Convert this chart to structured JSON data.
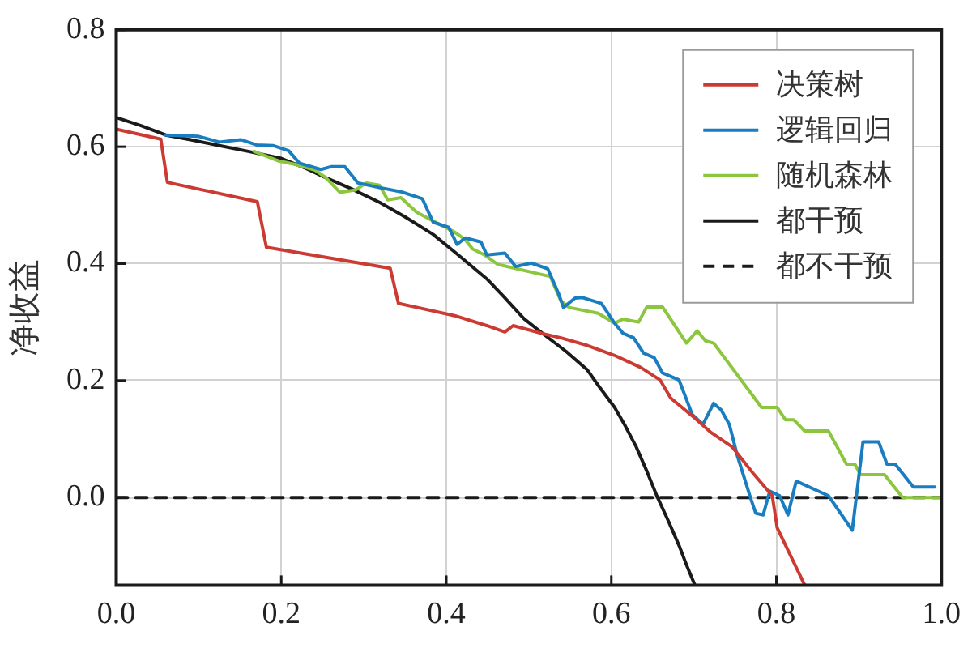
{
  "chart_data": {
    "type": "line",
    "ylabel": "净收益",
    "xlim": [
      0,
      1
    ],
    "xticks": [
      {
        "value": 0,
        "label": "0.0"
      },
      0.2,
      0.4,
      0.6,
      0.8,
      {
        "value": 1,
        "label": "1.0"
      }
    ],
    "ylim": [
      -0.15,
      0.8
    ],
    "yticks": [
      {
        "value": 0,
        "label": "0.0"
      },
      0.2,
      0.4,
      0.6,
      0.8
    ],
    "grid": true,
    "legend": "top right",
    "series": [
      {
        "name": "决策树",
        "color": "#cc3b33",
        "x": [
          0,
          0.054,
          0.062,
          0.171,
          0.182,
          0.332,
          0.342,
          0.41,
          0.449,
          0.471,
          0.481,
          0.52,
          0.539,
          0.571,
          0.604,
          0.636,
          0.659,
          0.672,
          0.701,
          0.72,
          0.746,
          0.772,
          0.795,
          0.801,
          0.834
        ],
        "values": [
          0.63,
          0.613,
          0.539,
          0.506,
          0.428,
          0.392,
          0.332,
          0.311,
          0.294,
          0.283,
          0.294,
          0.279,
          0.273,
          0.26,
          0.243,
          0.222,
          0.201,
          0.17,
          0.136,
          0.112,
          0.087,
          0.041,
          0.003,
          -0.052,
          -0.149
        ]
      },
      {
        "name": "逻辑回归",
        "color": "#1a7dc0",
        "x": [
          0.06,
          0.099,
          0.125,
          0.151,
          0.17,
          0.19,
          0.209,
          0.222,
          0.248,
          0.261,
          0.277,
          0.293,
          0.319,
          0.345,
          0.371,
          0.384,
          0.403,
          0.413,
          0.423,
          0.442,
          0.449,
          0.471,
          0.484,
          0.503,
          0.523,
          0.536,
          0.542,
          0.556,
          0.565,
          0.588,
          0.604,
          0.614,
          0.627,
          0.639,
          0.652,
          0.662,
          0.682,
          0.698,
          0.711,
          0.724,
          0.733,
          0.743,
          0.753,
          0.769,
          0.775,
          0.784,
          0.792,
          0.804,
          0.814,
          0.824,
          0.863,
          0.892,
          0.905,
          0.924,
          0.934,
          0.944,
          0.966,
          0.992
        ],
        "values": [
          0.62,
          0.618,
          0.608,
          0.612,
          0.603,
          0.602,
          0.593,
          0.572,
          0.561,
          0.566,
          0.566,
          0.538,
          0.53,
          0.523,
          0.511,
          0.471,
          0.462,
          0.433,
          0.444,
          0.437,
          0.415,
          0.418,
          0.395,
          0.401,
          0.391,
          0.349,
          0.325,
          0.341,
          0.342,
          0.332,
          0.298,
          0.281,
          0.273,
          0.247,
          0.239,
          0.213,
          0.201,
          0.142,
          0.125,
          0.161,
          0.15,
          0.125,
          0.07,
          -0.002,
          -0.027,
          -0.03,
          0.011,
          0.003,
          -0.03,
          0.028,
          0.003,
          -0.056,
          0.095,
          0.095,
          0.057,
          0.057,
          0.018,
          0.018
        ]
      },
      {
        "name": "随机森林",
        "color": "#8cc63e",
        "x": [
          0.167,
          0.196,
          0.216,
          0.241,
          0.254,
          0.271,
          0.29,
          0.303,
          0.319,
          0.329,
          0.345,
          0.364,
          0.384,
          0.41,
          0.423,
          0.432,
          0.445,
          0.462,
          0.526,
          0.539,
          0.549,
          0.584,
          0.604,
          0.614,
          0.633,
          0.643,
          0.662,
          0.691,
          0.704,
          0.714,
          0.724,
          0.782,
          0.801,
          0.811,
          0.821,
          0.834,
          0.863,
          0.885,
          0.895,
          0.902,
          0.931,
          0.953,
          1
        ],
        "values": [
          0.592,
          0.576,
          0.57,
          0.56,
          0.547,
          0.522,
          0.526,
          0.538,
          0.534,
          0.509,
          0.513,
          0.488,
          0.473,
          0.454,
          0.441,
          0.425,
          0.416,
          0.399,
          0.378,
          0.336,
          0.325,
          0.315,
          0.298,
          0.305,
          0.3,
          0.326,
          0.326,
          0.264,
          0.285,
          0.268,
          0.264,
          0.154,
          0.154,
          0.133,
          0.133,
          0.114,
          0.114,
          0.057,
          0.057,
          0.039,
          0.039,
          0,
          0
        ]
      },
      {
        "name": "都干预",
        "color": "#1a1a1a",
        "x": [
          0,
          0.03,
          0.06,
          0.09,
          0.125,
          0.16,
          0.2,
          0.23,
          0.254,
          0.285,
          0.319,
          0.35,
          0.384,
          0.41,
          0.449,
          0.47,
          0.494,
          0.52,
          0.545,
          0.571,
          0.585,
          0.604,
          0.617,
          0.63,
          0.643,
          0.656,
          0.669,
          0.682,
          0.691,
          0.701
        ],
        "values": [
          0.65,
          0.636,
          0.62,
          0.612,
          0.602,
          0.592,
          0.58,
          0.563,
          0.547,
          0.528,
          0.505,
          0.48,
          0.45,
          0.42,
          0.374,
          0.343,
          0.306,
          0.277,
          0.25,
          0.218,
          0.19,
          0.154,
          0.122,
          0.087,
          0.045,
          0,
          -0.04,
          -0.082,
          -0.115,
          -0.149
        ]
      },
      {
        "name": "都不干预",
        "color": "#1a1a1a",
        "line_style": "dashed",
        "x": [
          0,
          1
        ],
        "values": [
          0,
          0
        ]
      }
    ]
  }
}
